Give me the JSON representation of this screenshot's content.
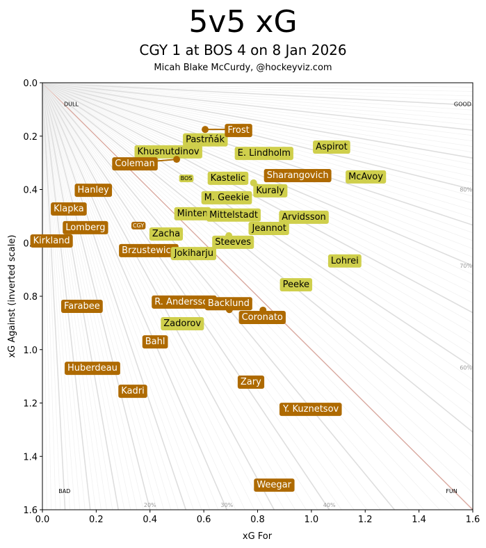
{
  "title": "5v5 xG",
  "subtitle": "CGY 1 at BOS 4 on 8 Jan 2026",
  "credit": "Micah Blake McCurdy, @hockeyviz.com",
  "chart_data": {
    "type": "scatter",
    "xlabel": "xG For",
    "ylabel": "xG Against (inverted scale)",
    "xlim": [
      0,
      1.6
    ],
    "ylim": [
      1.6,
      0
    ],
    "y_inverted": true,
    "xticks": [
      "0.0",
      "0.2",
      "0.4",
      "0.6",
      "0.8",
      "1.0",
      "1.2",
      "1.4",
      "1.6"
    ],
    "yticks": [
      "0.0",
      "0.2",
      "0.4",
      "0.6",
      "0.8",
      "1.0",
      "1.2",
      "1.4",
      "1.6"
    ],
    "grid": "radial xG% lines",
    "corner_labels": {
      "top_left": "DULL",
      "top_right": "GOOD",
      "bottom_left": "BAD",
      "bottom_right": "FUN"
    },
    "percent_labels": [
      {
        "text": "80%",
        "pct": 80
      },
      {
        "text": "70%",
        "pct": 70
      },
      {
        "text": "60%",
        "pct": 60
      },
      {
        "text": "40%",
        "pct": 40
      },
      {
        "text": "30%",
        "pct": 30
      },
      {
        "text": "20%",
        "pct": 20
      }
    ],
    "team_colors": {
      "CGY": "#ae6a00",
      "BOS": "#cfcf4c"
    },
    "even_line_color": "#d9a9a0",
    "teams": [
      {
        "name": "BOS",
        "team": "BOS",
        "xgf": 0.535,
        "xga": 0.357
      },
      {
        "name": "CGY",
        "team": "CGY",
        "xgf": 0.357,
        "xga": 0.534
      }
    ],
    "players": [
      {
        "name": "Brzustewicz",
        "team": "CGY",
        "xgf": 0.395,
        "xga": 0.625
      },
      {
        "name": "R. Andersson",
        "team": "CGY",
        "xgf": 0.527,
        "xga": 0.818
      },
      {
        "name": "Minten",
        "team": "BOS",
        "xgf": 0.558,
        "xga": 0.487
      },
      {
        "name": "Khusnutdinov",
        "team": "BOS",
        "xgf": 0.468,
        "xga": 0.255
      },
      {
        "name": "Pastrňák",
        "team": "BOS",
        "xgf": 0.605,
        "xga": 0.21
      },
      {
        "name": "Frost",
        "team": "CGY",
        "xgf": 0.605,
        "xga": 0.175
      },
      {
        "name": "Coleman",
        "team": "CGY",
        "xgf": 0.499,
        "xga": 0.287
      },
      {
        "name": "E. Lindholm",
        "team": "BOS",
        "xgf": 0.824,
        "xga": 0.261
      },
      {
        "name": "Aspirot",
        "team": "BOS",
        "xgf": 1.075,
        "xga": 0.237
      },
      {
        "name": "M. Geekie",
        "team": "BOS",
        "xgf": 0.685,
        "xga": 0.427
      },
      {
        "name": "Kastelic",
        "team": "BOS",
        "xgf": 0.69,
        "xga": 0.354
      },
      {
        "name": "Kuraly",
        "team": "BOS",
        "xgf": 0.785,
        "xga": 0.375
      },
      {
        "name": "Sharangovich",
        "team": "CGY",
        "xgf": 0.949,
        "xga": 0.344
      },
      {
        "name": "McAvoy",
        "team": "BOS",
        "xgf": 1.202,
        "xga": 0.349
      },
      {
        "name": "Hanley",
        "team": "CGY",
        "xgf": 0.189,
        "xga": 0.399
      },
      {
        "name": "Klapka",
        "team": "CGY",
        "xgf": 0.098,
        "xga": 0.469
      },
      {
        "name": "Mittelstadt",
        "team": "BOS",
        "xgf": 0.711,
        "xga": 0.492
      },
      {
        "name": "Arvidsson",
        "team": "BOS",
        "xgf": 0.972,
        "xga": 0.5
      },
      {
        "name": "Lomberg",
        "team": "CGY",
        "xgf": 0.16,
        "xga": 0.539
      },
      {
        "name": "Jeannot",
        "team": "BOS",
        "xgf": 0.843,
        "xga": 0.542
      },
      {
        "name": "Zacha",
        "team": "BOS",
        "xgf": 0.46,
        "xga": 0.563
      },
      {
        "name": "Kirkland",
        "team": "CGY",
        "xgf": 0.034,
        "xga": 0.589
      },
      {
        "name": "Steeves",
        "team": "BOS",
        "xgf": 0.693,
        "xga": 0.573
      },
      {
        "name": "Jokiharju",
        "team": "BOS",
        "xgf": 0.563,
        "xga": 0.636
      },
      {
        "name": "Lohrei",
        "team": "BOS",
        "xgf": 1.124,
        "xga": 0.664
      },
      {
        "name": "Peeke",
        "team": "BOS",
        "xgf": 0.943,
        "xga": 0.753
      },
      {
        "name": "Farabee",
        "team": "CGY",
        "xgf": 0.147,
        "xga": 0.834
      },
      {
        "name": "Backlund",
        "team": "CGY",
        "xgf": 0.695,
        "xga": 0.85
      },
      {
        "name": "Coronato",
        "team": "CGY",
        "xgf": 0.82,
        "xga": 0.852
      },
      {
        "name": "Zadorov",
        "team": "BOS",
        "xgf": 0.52,
        "xga": 0.899
      },
      {
        "name": "Bahl",
        "team": "CGY",
        "xgf": 0.419,
        "xga": 0.967
      },
      {
        "name": "Huberdeau",
        "team": "CGY",
        "xgf": 0.186,
        "xga": 1.066
      },
      {
        "name": "Zary",
        "team": "CGY",
        "xgf": 0.775,
        "xga": 1.118
      },
      {
        "name": "Kadri",
        "team": "CGY",
        "xgf": 0.336,
        "xga": 1.152
      },
      {
        "name": "Y. Kuznetsov",
        "team": "CGY",
        "xgf": 0.998,
        "xga": 1.22
      },
      {
        "name": "Weegar",
        "team": "CGY",
        "xgf": 0.861,
        "xga": 1.504
      }
    ]
  }
}
